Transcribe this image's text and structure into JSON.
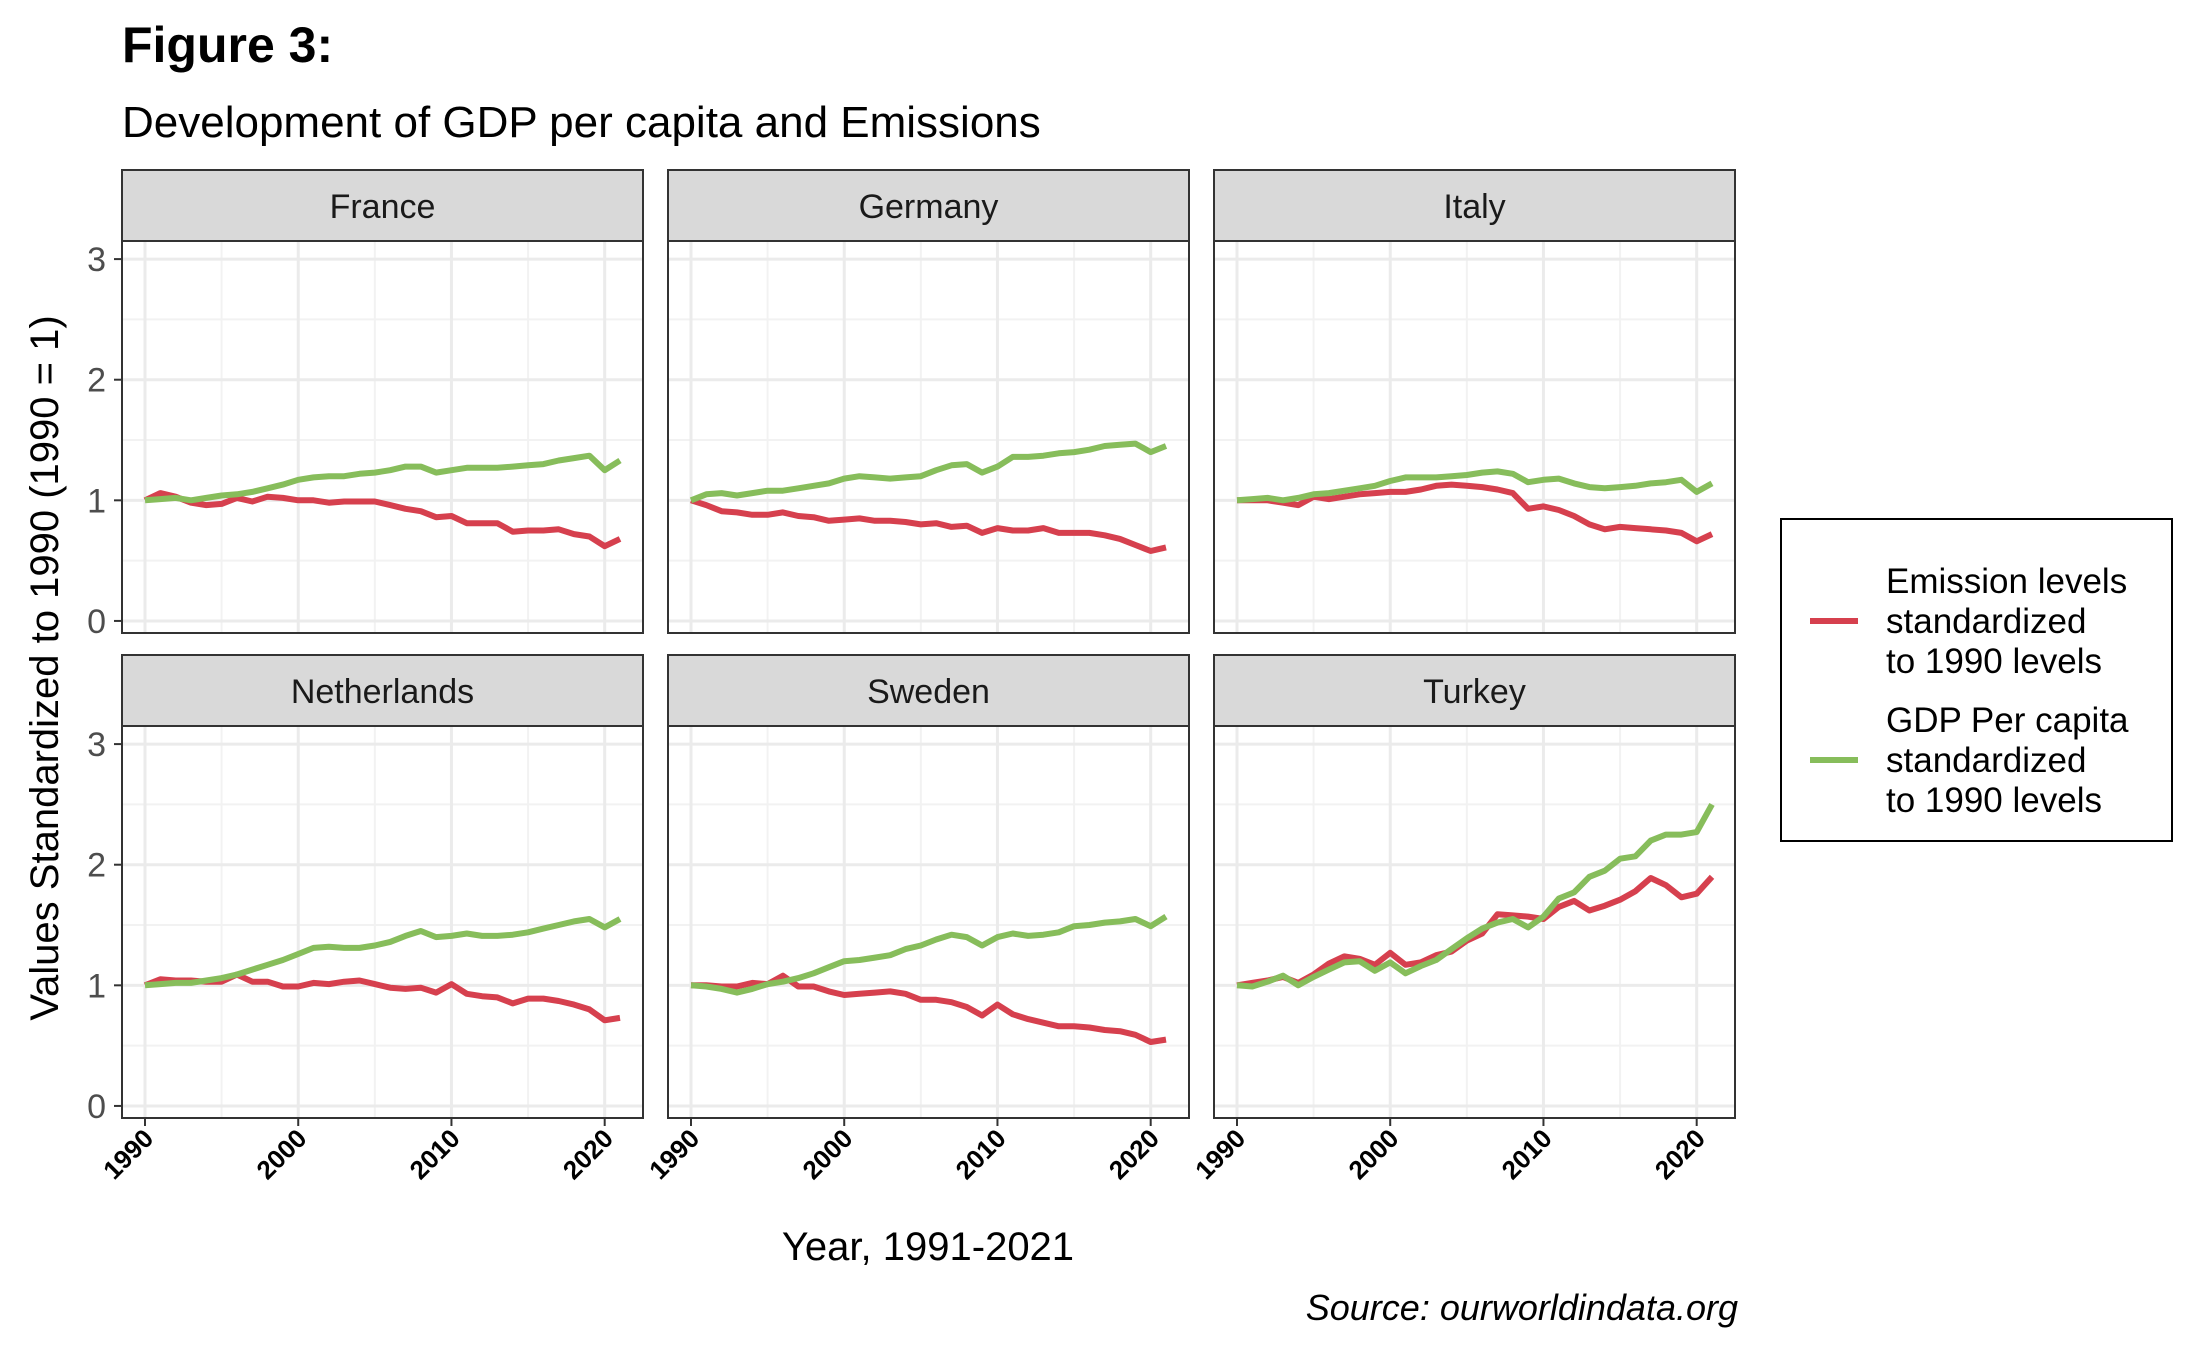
{
  "figure": {
    "title": "Figure 3:",
    "subtitle": "Development of GDP per capita and Emissions",
    "caption": "Source: ourworldindata.org"
  },
  "chart_data": {
    "type": "line",
    "xlabel": "Year, 1991-2021",
    "ylabel": "Values Standardized to 1990 (1990 = 1)",
    "xlim": [
      1988.5,
      2022.5
    ],
    "ylim": [
      -0.1,
      3.15
    ],
    "x_ticks": [
      1990,
      2000,
      2010,
      2020
    ],
    "y_ticks": [
      0,
      1,
      2,
      3
    ],
    "grid": true,
    "legend_position": "right",
    "x": [
      1990,
      1991,
      1992,
      1993,
      1994,
      1995,
      1996,
      1997,
      1998,
      1999,
      2000,
      2001,
      2002,
      2003,
      2004,
      2005,
      2006,
      2007,
      2008,
      2009,
      2010,
      2011,
      2012,
      2013,
      2014,
      2015,
      2016,
      2017,
      2018,
      2019,
      2020,
      2021
    ],
    "series_meta": [
      {
        "key": "emissions",
        "name": "Emission levels\nstandardized\nto 1990 levels",
        "color": "#d6404e"
      },
      {
        "key": "gdp",
        "name": "GDP Per capita\nstandardized\nto 1990 levels",
        "color": "#87bd5b"
      }
    ],
    "panels": [
      {
        "name": "France",
        "emissions": [
          1.0,
          1.06,
          1.03,
          0.98,
          0.96,
          0.97,
          1.02,
          0.99,
          1.03,
          1.02,
          1.0,
          1.0,
          0.98,
          0.99,
          0.99,
          0.99,
          0.96,
          0.93,
          0.91,
          0.86,
          0.87,
          0.81,
          0.81,
          0.81,
          0.74,
          0.75,
          0.75,
          0.76,
          0.72,
          0.7,
          0.62,
          0.68
        ],
        "gdp": [
          1.0,
          1.01,
          1.02,
          1.0,
          1.02,
          1.04,
          1.05,
          1.07,
          1.1,
          1.13,
          1.17,
          1.19,
          1.2,
          1.2,
          1.22,
          1.23,
          1.25,
          1.28,
          1.28,
          1.23,
          1.25,
          1.27,
          1.27,
          1.27,
          1.28,
          1.29,
          1.3,
          1.33,
          1.35,
          1.37,
          1.25,
          1.33
        ]
      },
      {
        "name": "Germany",
        "emissions": [
          1.0,
          0.96,
          0.91,
          0.9,
          0.88,
          0.88,
          0.9,
          0.87,
          0.86,
          0.83,
          0.84,
          0.85,
          0.83,
          0.83,
          0.82,
          0.8,
          0.81,
          0.78,
          0.79,
          0.73,
          0.77,
          0.75,
          0.75,
          0.77,
          0.73,
          0.73,
          0.73,
          0.71,
          0.68,
          0.63,
          0.58,
          0.61
        ],
        "gdp": [
          1.0,
          1.05,
          1.06,
          1.04,
          1.06,
          1.08,
          1.08,
          1.1,
          1.12,
          1.14,
          1.18,
          1.2,
          1.19,
          1.18,
          1.19,
          1.2,
          1.25,
          1.29,
          1.3,
          1.23,
          1.28,
          1.36,
          1.36,
          1.37,
          1.39,
          1.4,
          1.42,
          1.45,
          1.46,
          1.47,
          1.4,
          1.45
        ]
      },
      {
        "name": "Italy",
        "emissions": [
          1.0,
          1.0,
          1.0,
          0.98,
          0.96,
          1.03,
          1.01,
          1.03,
          1.05,
          1.06,
          1.07,
          1.07,
          1.09,
          1.12,
          1.13,
          1.12,
          1.11,
          1.09,
          1.06,
          0.93,
          0.95,
          0.92,
          0.87,
          0.8,
          0.76,
          0.78,
          0.77,
          0.76,
          0.75,
          0.73,
          0.66,
          0.72
        ],
        "gdp": [
          1.0,
          1.01,
          1.02,
          1.0,
          1.02,
          1.05,
          1.06,
          1.08,
          1.1,
          1.12,
          1.16,
          1.19,
          1.19,
          1.19,
          1.2,
          1.21,
          1.23,
          1.24,
          1.22,
          1.15,
          1.17,
          1.18,
          1.14,
          1.11,
          1.1,
          1.11,
          1.12,
          1.14,
          1.15,
          1.17,
          1.07,
          1.14
        ]
      },
      {
        "name": "Netherlands",
        "emissions": [
          1.0,
          1.05,
          1.04,
          1.04,
          1.03,
          1.03,
          1.09,
          1.03,
          1.03,
          0.99,
          0.99,
          1.02,
          1.01,
          1.03,
          1.04,
          1.01,
          0.98,
          0.97,
          0.98,
          0.94,
          1.01,
          0.93,
          0.91,
          0.9,
          0.85,
          0.89,
          0.89,
          0.87,
          0.84,
          0.8,
          0.71,
          0.73
        ],
        "gdp": [
          1.0,
          1.01,
          1.02,
          1.02,
          1.04,
          1.06,
          1.09,
          1.13,
          1.17,
          1.21,
          1.26,
          1.31,
          1.32,
          1.31,
          1.31,
          1.33,
          1.36,
          1.41,
          1.45,
          1.4,
          1.41,
          1.43,
          1.41,
          1.41,
          1.42,
          1.44,
          1.47,
          1.5,
          1.53,
          1.55,
          1.48,
          1.55
        ]
      },
      {
        "name": "Sweden",
        "emissions": [
          1.0,
          1.0,
          0.99,
          0.99,
          1.02,
          1.01,
          1.08,
          0.99,
          0.99,
          0.95,
          0.92,
          0.93,
          0.94,
          0.95,
          0.93,
          0.88,
          0.88,
          0.86,
          0.82,
          0.75,
          0.84,
          0.76,
          0.72,
          0.69,
          0.66,
          0.66,
          0.65,
          0.63,
          0.62,
          0.59,
          0.53,
          0.55
        ],
        "gdp": [
          1.0,
          0.99,
          0.97,
          0.94,
          0.97,
          1.01,
          1.03,
          1.06,
          1.1,
          1.15,
          1.2,
          1.21,
          1.23,
          1.25,
          1.3,
          1.33,
          1.38,
          1.42,
          1.4,
          1.33,
          1.4,
          1.43,
          1.41,
          1.42,
          1.44,
          1.49,
          1.5,
          1.52,
          1.53,
          1.55,
          1.49,
          1.57
        ]
      },
      {
        "name": "Turkey",
        "emissions": [
          1.0,
          1.02,
          1.04,
          1.07,
          1.02,
          1.09,
          1.18,
          1.24,
          1.22,
          1.17,
          1.27,
          1.17,
          1.19,
          1.25,
          1.28,
          1.37,
          1.43,
          1.59,
          1.58,
          1.57,
          1.55,
          1.65,
          1.7,
          1.62,
          1.66,
          1.71,
          1.78,
          1.89,
          1.83,
          1.73,
          1.76,
          1.9
        ],
        "gdp": [
          1.0,
          0.99,
          1.03,
          1.08,
          1.0,
          1.07,
          1.13,
          1.19,
          1.2,
          1.12,
          1.19,
          1.1,
          1.16,
          1.21,
          1.3,
          1.39,
          1.47,
          1.52,
          1.55,
          1.48,
          1.57,
          1.72,
          1.77,
          1.9,
          1.95,
          2.05,
          2.07,
          2.2,
          2.25,
          2.25,
          2.27,
          2.5
        ]
      }
    ]
  }
}
